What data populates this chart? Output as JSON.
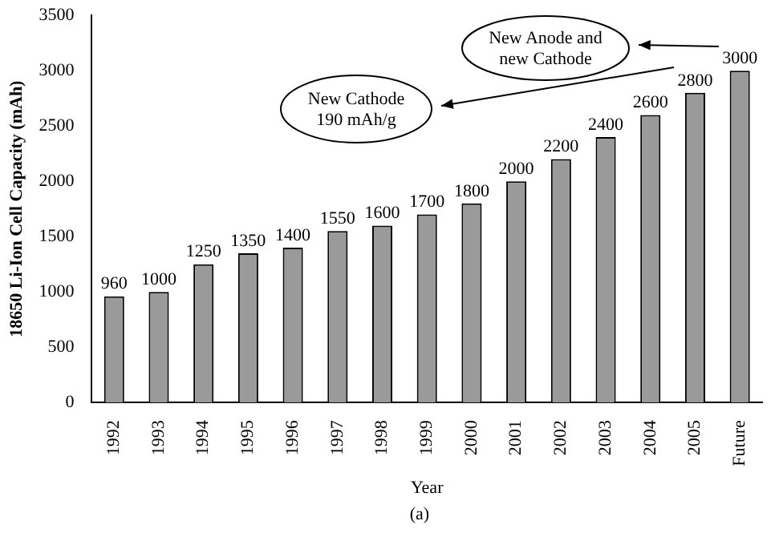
{
  "chart_data": {
    "type": "bar",
    "xlabel": "Year",
    "ylabel": "18650 Li-Ion Cell Capacity (mAh)",
    "categories": [
      "1992",
      "1993",
      "1994",
      "1995",
      "1996",
      "1997",
      "1998",
      "1999",
      "2000",
      "2001",
      "2002",
      "2003",
      "2004",
      "2005",
      "Future"
    ],
    "values": [
      960,
      1000,
      1250,
      1350,
      1400,
      1550,
      1600,
      1700,
      1800,
      2000,
      2200,
      2400,
      2600,
      2800,
      3000
    ],
    "color": "#9a9a9a",
    "ylim": [
      0,
      3500
    ],
    "yticks": [
      0,
      500,
      1000,
      1500,
      2000,
      2500,
      3000,
      3500
    ],
    "grid": false,
    "legend": false,
    "data_labels": true,
    "annotations": [
      "New Cathode\n190 mAh/g",
      "New Anode and\nnew Cathode",
      "(a)"
    ]
  }
}
